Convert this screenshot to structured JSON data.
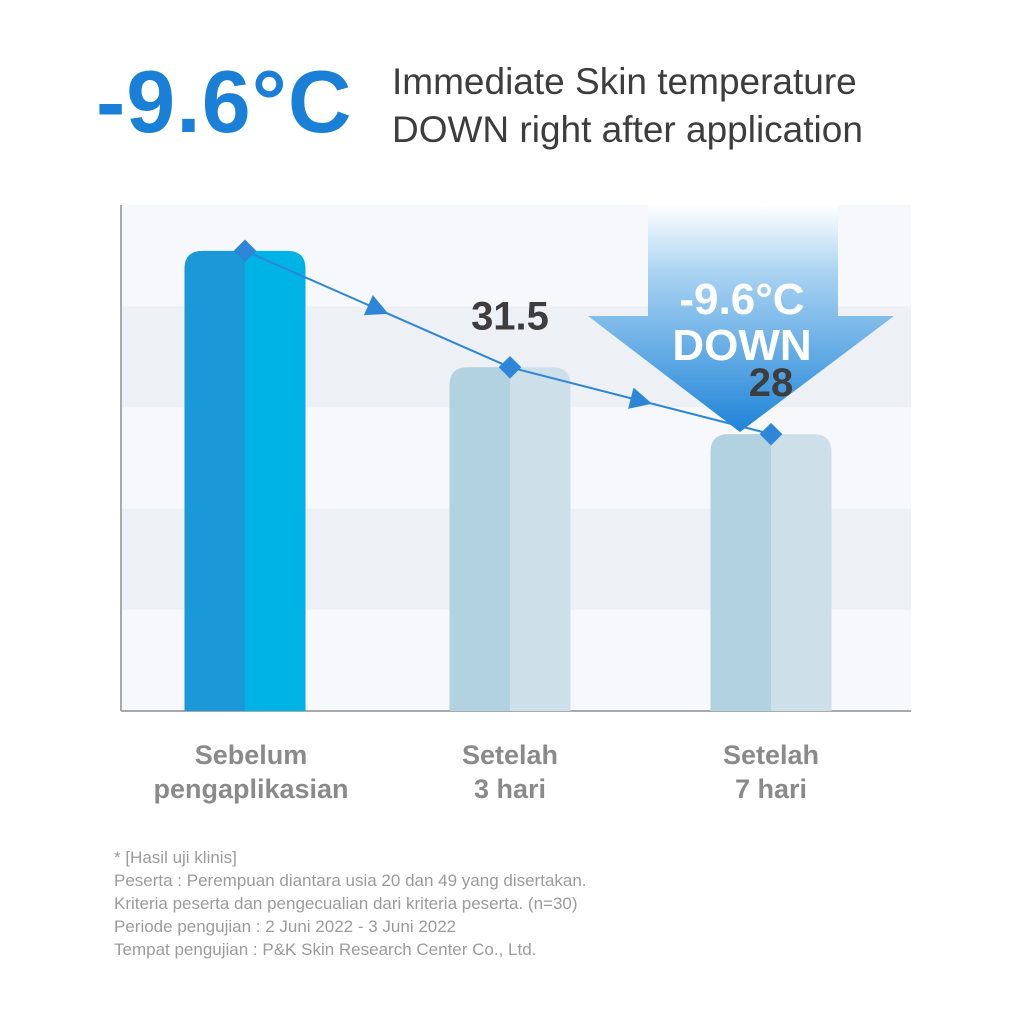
{
  "headline": {
    "value": "-9.6°C",
    "line1": "Immediate Skin temperature",
    "line2": "DOWN right after application"
  },
  "badge": {
    "line1": "-9.6°C",
    "line2": "DOWN"
  },
  "colors": {
    "accent": "#1a7fd6",
    "bar_primary_dark": "#1a98d8",
    "bar_primary_light": "#00b3e6",
    "bar_secondary_dark": "#b3d2df",
    "bar_secondary_light": "#cde0ea",
    "line": "#2e86d8"
  },
  "chart_data": {
    "type": "bar",
    "categories": [
      "Sebelum pengaplikasian",
      "Setelah 3 hari",
      "Setelah 7 hari"
    ],
    "category_lines": [
      [
        "Sebelum",
        "pengaplikasian"
      ],
      [
        "Setelah",
        "3 hari"
      ],
      [
        "Setelah",
        "7 hari"
      ]
    ],
    "values": [
      37.6,
      31.5,
      28
    ],
    "data_labels": [
      "",
      "31.5",
      "28"
    ],
    "overlay": "line with diamond markers and direction arrows connecting bar tops",
    "ylim": [
      13.5,
      40
    ],
    "grid": "alternating horizontal bands",
    "title": "",
    "xlabel": "",
    "ylabel": ""
  },
  "footnote": [
    "*  [Hasil uji klinis]",
    "Peserta : Perempuan diantara usia 20 dan 49 yang disertakan.",
    "Kriteria peserta dan pengecualian dari kriteria peserta. (n=30)",
    "Periode pengujian : 2 Juni 2022 - 3 Juni 2022",
    "Tempat pengujian : P&K Skin Research Center Co., Ltd."
  ]
}
